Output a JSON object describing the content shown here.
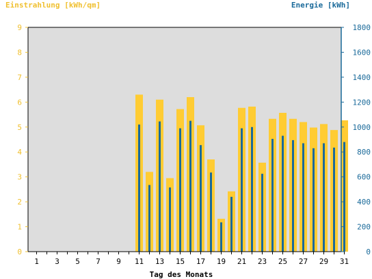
{
  "chart_data": {
    "type": "bar",
    "y_left_label": "Einstrahlung [kWh/qm]",
    "y_right_label": "Energie [kWh]",
    "xlabel": "Tag des Monats",
    "x_tick_labels": [
      "1",
      "3",
      "5",
      "7",
      "9",
      "11",
      "13",
      "15",
      "17",
      "19",
      "21",
      "23",
      "25",
      "27",
      "29",
      "31"
    ],
    "y_left_ticks": [
      "0",
      "1",
      "2",
      "3",
      "4",
      "5",
      "6",
      "7",
      "8",
      "9"
    ],
    "y_right_ticks": [
      "0",
      "200",
      "400",
      "600",
      "800",
      "1000",
      "1200",
      "1400",
      "1600",
      "1800"
    ],
    "ylim_left": [
      0,
      9
    ],
    "ylim_right": [
      0,
      1800
    ],
    "days": [
      1,
      2,
      3,
      4,
      5,
      6,
      7,
      8,
      9,
      10,
      11,
      12,
      13,
      14,
      15,
      16,
      17,
      18,
      19,
      20,
      21,
      22,
      23,
      24,
      25,
      26,
      27,
      28,
      29,
      30,
      31
    ],
    "series": [
      {
        "axis": "left",
        "color": "#ffcc33",
        "values": [
          0,
          0,
          0,
          0,
          0,
          0,
          0,
          0,
          0,
          0,
          6.3,
          3.2,
          6.1,
          2.95,
          5.72,
          6.2,
          5.07,
          3.7,
          1.32,
          2.42,
          5.77,
          5.82,
          3.57,
          5.33,
          5.57,
          5.33,
          5.2,
          4.98,
          5.12,
          4.88,
          5.27
        ]
      },
      {
        "axis": "right",
        "color": "#1a6a9a",
        "values": [
          0,
          0,
          0,
          0,
          0,
          0,
          0,
          0,
          0,
          0,
          1020,
          535,
          1045,
          515,
          990,
          1050,
          855,
          635,
          235,
          440,
          990,
          1000,
          625,
          905,
          930,
          895,
          870,
          830,
          870,
          835,
          880
        ]
      }
    ],
    "grid": false,
    "colors": {
      "plot_background": "#dddddd",
      "left_axis": "#f0c030",
      "right_axis": "#1a6a9a"
    }
  }
}
